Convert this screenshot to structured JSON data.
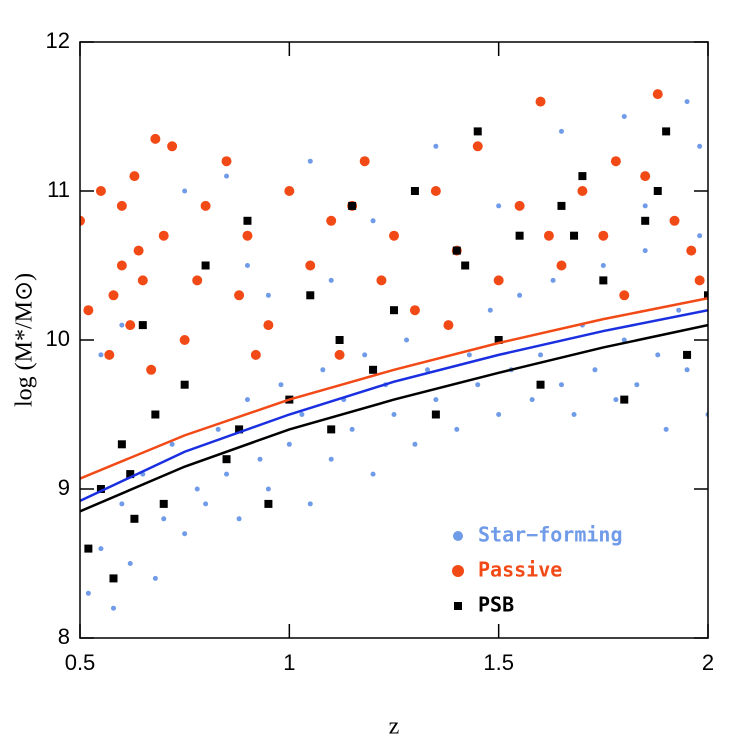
{
  "chart_data": {
    "type": "scatter",
    "xlabel": "z",
    "ylabel": "log (M*/M⊙)",
    "xlim": [
      0.5,
      2
    ],
    "ylim": [
      8,
      12
    ],
    "xticks": [
      0.5,
      1,
      1.5,
      2
    ],
    "yticks": [
      8,
      9,
      10,
      11,
      12
    ],
    "legend": "lower right",
    "series": [
      {
        "name": "Star−forming",
        "color": "#6f9be8",
        "marker": "circle",
        "x": [
          0.52,
          0.55,
          0.58,
          0.6,
          0.62,
          0.65,
          0.68,
          0.7,
          0.72,
          0.75,
          0.78,
          0.8,
          0.83,
          0.85,
          0.88,
          0.9,
          0.93,
          0.95,
          0.98,
          1.0,
          1.03,
          1.05,
          1.08,
          1.1,
          1.13,
          1.15,
          1.18,
          1.2,
          1.23,
          1.25,
          1.28,
          1.3,
          1.33,
          1.35,
          1.38,
          1.4,
          1.43,
          1.45,
          1.48,
          1.5,
          1.53,
          1.55,
          1.58,
          1.6,
          1.63,
          1.65,
          1.68,
          1.7,
          1.73,
          1.75,
          1.78,
          1.8,
          1.83,
          1.85,
          1.88,
          1.9,
          1.93,
          1.95,
          1.98,
          2.0,
          0.6,
          0.75,
          0.9,
          1.05,
          1.2,
          1.35,
          1.5,
          1.65,
          1.8,
          1.95,
          0.55,
          0.85,
          1.1,
          1.4,
          1.7,
          1.98,
          1.25,
          1.55,
          1.85,
          0.95
        ],
        "values": [
          8.3,
          8.6,
          8.2,
          8.9,
          8.5,
          9.1,
          8.4,
          8.8,
          9.3,
          8.7,
          9.0,
          8.9,
          9.4,
          9.1,
          8.8,
          9.6,
          9.2,
          9.0,
          9.7,
          9.3,
          9.5,
          8.9,
          9.8,
          9.2,
          9.6,
          9.4,
          9.9,
          9.1,
          9.7,
          9.5,
          10.0,
          9.3,
          9.8,
          9.6,
          10.1,
          9.4,
          9.9,
          9.7,
          10.2,
          9.5,
          9.8,
          10.3,
          9.6,
          9.9,
          10.4,
          9.7,
          9.5,
          10.1,
          9.8,
          10.5,
          9.6,
          10.0,
          9.7,
          10.6,
          9.9,
          9.4,
          10.2,
          9.8,
          10.7,
          9.5,
          10.1,
          11.0,
          10.5,
          11.2,
          10.8,
          11.3,
          10.9,
          11.4,
          11.5,
          11.6,
          9.9,
          11.1,
          10.4,
          10.6,
          11.0,
          11.3,
          10.2,
          10.7,
          10.9,
          10.3
        ]
      },
      {
        "name": "Passive",
        "color": "#f24a16",
        "marker": "circle",
        "x": [
          0.5,
          0.52,
          0.55,
          0.57,
          0.6,
          0.6,
          0.62,
          0.63,
          0.65,
          0.67,
          0.7,
          0.72,
          0.75,
          0.8,
          0.85,
          0.88,
          0.9,
          0.95,
          1.0,
          1.05,
          1.1,
          1.12,
          1.18,
          1.22,
          1.25,
          1.3,
          1.35,
          1.4,
          1.45,
          1.5,
          1.55,
          1.6,
          1.65,
          1.7,
          1.75,
          1.8,
          1.85,
          1.88,
          1.92,
          1.96,
          0.58,
          0.64,
          0.68,
          0.78,
          0.92,
          1.15,
          1.38,
          1.62,
          1.78,
          1.98
        ],
        "values": [
          10.8,
          10.2,
          11.0,
          9.9,
          10.5,
          10.9,
          10.1,
          11.1,
          10.4,
          9.8,
          10.7,
          11.3,
          10.0,
          10.9,
          11.2,
          10.3,
          10.7,
          10.1,
          11.0,
          10.5,
          10.8,
          9.9,
          11.2,
          10.4,
          10.7,
          10.2,
          11.0,
          10.6,
          11.3,
          10.4,
          10.9,
          11.6,
          10.5,
          11.0,
          10.7,
          10.3,
          11.1,
          11.65,
          10.8,
          10.6,
          10.3,
          10.6,
          11.35,
          10.4,
          9.9,
          10.9,
          10.1,
          10.7,
          11.2,
          10.4
        ]
      },
      {
        "name": "PSB",
        "color": "#000000",
        "marker": "square",
        "x": [
          0.52,
          0.55,
          0.58,
          0.6,
          0.63,
          0.65,
          0.68,
          0.7,
          0.75,
          0.8,
          0.85,
          0.9,
          0.95,
          1.0,
          1.05,
          1.1,
          1.15,
          1.2,
          1.25,
          1.3,
          1.35,
          1.4,
          1.45,
          1.5,
          1.55,
          1.6,
          1.65,
          1.7,
          1.75,
          1.8,
          1.85,
          1.9,
          1.95,
          2.0,
          0.62,
          0.88,
          1.12,
          1.42,
          1.68,
          1.88
        ],
        "values": [
          8.6,
          9.0,
          8.4,
          9.3,
          8.8,
          10.1,
          9.5,
          8.9,
          9.7,
          10.5,
          9.2,
          10.8,
          8.9,
          9.6,
          10.3,
          9.4,
          10.9,
          9.8,
          10.2,
          11.0,
          9.5,
          10.6,
          11.4,
          10.0,
          10.7,
          9.7,
          10.9,
          11.1,
          10.4,
          9.6,
          10.8,
          11.4,
          9.9,
          10.3,
          9.1,
          9.4,
          10.0,
          10.5,
          10.7,
          11.0
        ]
      }
    ],
    "curves": [
      {
        "color": "#f24a16",
        "x": [
          0.5,
          0.75,
          1,
          1.25,
          1.5,
          1.75,
          2
        ],
        "values": [
          9.07,
          9.36,
          9.6,
          9.8,
          9.98,
          10.14,
          10.28
        ]
      },
      {
        "color": "#1a2fe0",
        "x": [
          0.5,
          0.75,
          1,
          1.25,
          1.5,
          1.75,
          2
        ],
        "values": [
          8.92,
          9.25,
          9.5,
          9.72,
          9.9,
          10.06,
          10.2
        ]
      },
      {
        "color": "#000000",
        "x": [
          0.5,
          0.75,
          1,
          1.25,
          1.5,
          1.75,
          2
        ],
        "values": [
          8.85,
          9.15,
          9.4,
          9.6,
          9.78,
          9.95,
          10.1
        ]
      }
    ]
  }
}
